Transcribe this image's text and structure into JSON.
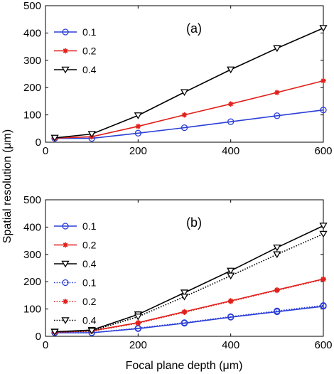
{
  "figure": {
    "ylabel": "Spatial resolution (μm)",
    "xlabel": "Focal plane depth (μm)"
  },
  "chart_data": [
    {
      "type": "line",
      "panel_label": "(a)",
      "xlim": [
        0,
        600
      ],
      "ylim": [
        0,
        500
      ],
      "xticks": [
        0,
        200,
        400,
        600
      ],
      "yticks": [
        0,
        100,
        200,
        300,
        400,
        500
      ],
      "grid": false,
      "legend_position": "top-left",
      "series": [
        {
          "name": "0.1",
          "color": "#2b3fd6",
          "marker": "circle",
          "dash": "solid",
          "x": [
            20,
            100,
            200,
            300,
            400,
            500,
            600
          ],
          "y": [
            14,
            14,
            33,
            53,
            75,
            97,
            118
          ]
        },
        {
          "name": "0.2",
          "color": "#e0201b",
          "marker": "asterisk",
          "dash": "solid",
          "x": [
            20,
            100,
            200,
            300,
            400,
            500,
            600
          ],
          "y": [
            15,
            20,
            58,
            100,
            140,
            182,
            225
          ]
        },
        {
          "name": "0.4",
          "color": "#000000",
          "marker": "triangle-down",
          "dash": "solid",
          "x": [
            20,
            100,
            200,
            300,
            400,
            500,
            600
          ],
          "y": [
            16,
            30,
            98,
            183,
            266,
            344,
            418
          ]
        }
      ]
    },
    {
      "type": "line",
      "panel_label": "(b)",
      "xlim": [
        0,
        600
      ],
      "ylim": [
        0,
        500
      ],
      "xticks": [
        0,
        200,
        400,
        600
      ],
      "yticks": [
        0,
        100,
        200,
        300,
        400,
        500
      ],
      "grid": false,
      "legend_position": "top-left",
      "series": [
        {
          "name": "0.1",
          "color": "#2b3fd6",
          "marker": "circle",
          "dash": "solid",
          "x": [
            20,
            100,
            200,
            300,
            400,
            500,
            600
          ],
          "y": [
            13,
            13,
            28,
            48,
            70,
            90,
            110
          ]
        },
        {
          "name": "0.2",
          "color": "#e0201b",
          "marker": "asterisk",
          "dash": "solid",
          "x": [
            20,
            100,
            200,
            300,
            400,
            500,
            600
          ],
          "y": [
            15,
            20,
            50,
            90,
            130,
            170,
            210
          ]
        },
        {
          "name": "0.4",
          "color": "#000000",
          "marker": "triangle-down",
          "dash": "solid",
          "x": [
            20,
            100,
            200,
            300,
            400,
            500,
            600
          ],
          "y": [
            17,
            23,
            80,
            160,
            240,
            325,
            405
          ]
        },
        {
          "name": "0.1",
          "color": "#2b3fd6",
          "marker": "circle",
          "dash": "dotted",
          "x": [
            20,
            100,
            200,
            300,
            400,
            500,
            600
          ],
          "y": [
            13,
            13,
            30,
            50,
            72,
            93,
            113
          ]
        },
        {
          "name": "0.2",
          "color": "#e0201b",
          "marker": "asterisk",
          "dash": "dotted",
          "x": [
            20,
            100,
            200,
            300,
            400,
            500,
            600
          ],
          "y": [
            15,
            19,
            48,
            88,
            128,
            168,
            208
          ]
        },
        {
          "name": "0.4",
          "color": "#000000",
          "marker": "triangle-down",
          "dash": "dotted",
          "x": [
            20,
            100,
            200,
            300,
            400,
            500,
            600
          ],
          "y": [
            16,
            20,
            72,
            145,
            222,
            300,
            375
          ]
        }
      ]
    }
  ]
}
